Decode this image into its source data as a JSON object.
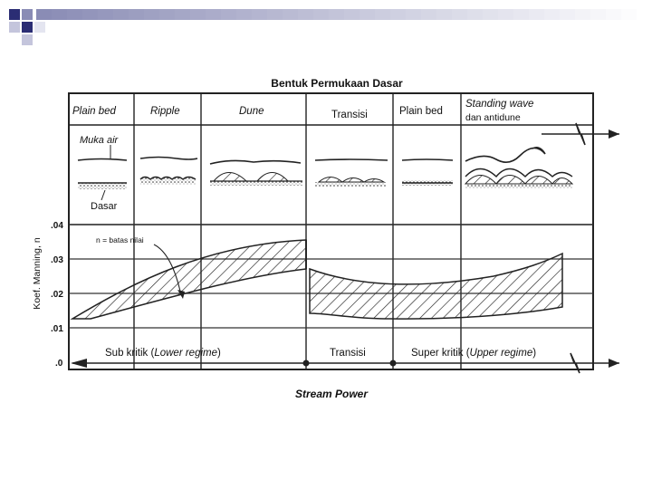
{
  "slide": {
    "accent_colors": [
      "#2b2d74",
      "#8a8cb5",
      "#c4c5dc",
      "#e4e5f0"
    ]
  },
  "figure": {
    "title": "Bentuk Permukaan Dasar",
    "columns": [
      "Plain  bed",
      "Ripple",
      "Dune",
      "Transisi",
      "Plain bed",
      "Standing wave",
      "dan antidune"
    ],
    "sketch_labels": {
      "water": "Muka air",
      "bed": "Dasar"
    },
    "y_axis_label": "Koef. Manning, n",
    "y_ticks": [
      ".04",
      ".03",
      ".02",
      ".01",
      ".0"
    ],
    "band_label": "n = batas nilai",
    "regimes": {
      "sub_prefix": "Sub kritik (",
      "sub_name": "Lower regime",
      "transition": "Transisi",
      "super_prefix": "Super kritik (",
      "super_name": "Upper regime",
      "close": ")"
    },
    "x_axis_label": "Stream Power"
  }
}
